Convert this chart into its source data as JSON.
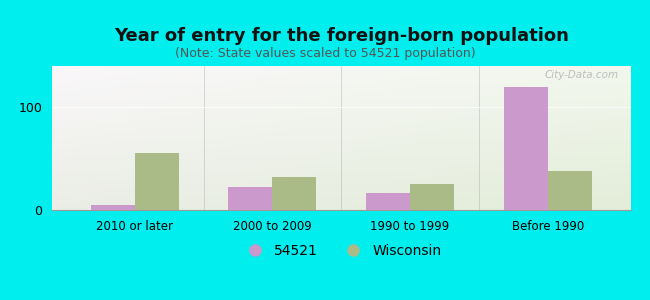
{
  "title": "Year of entry for the foreign-born population",
  "subtitle": "(Note: State values scaled to 54521 population)",
  "categories": [
    "2010 or later",
    "2000 to 2009",
    "1990 to 1999",
    "Before 1990"
  ],
  "values_54521": [
    5,
    22,
    17,
    120
  ],
  "values_wisconsin": [
    55,
    32,
    25,
    38
  ],
  "color_54521": "#cc99cc",
  "color_wisconsin": "#aabb88",
  "background_outer": "#00eeee",
  "ylim": [
    0,
    140
  ],
  "yticks": [
    0,
    100
  ],
  "bar_width": 0.32,
  "title_fontsize": 13,
  "subtitle_fontsize": 9,
  "legend_label_54521": "54521",
  "legend_label_wisconsin": "Wisconsin",
  "watermark": "City-Data.com"
}
